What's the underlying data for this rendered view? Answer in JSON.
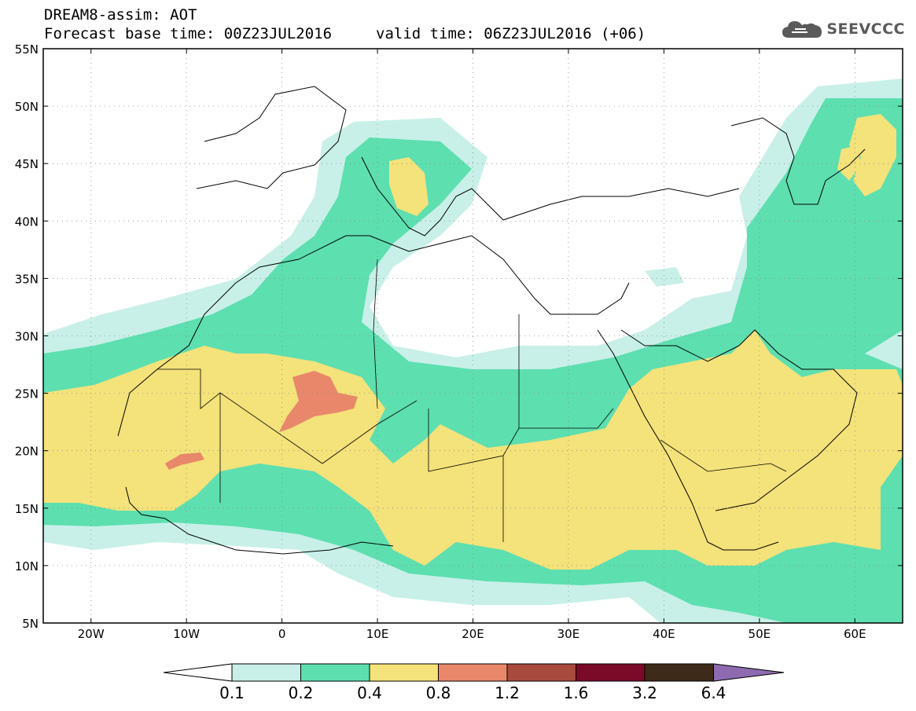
{
  "header": {
    "title": "DREAM8-assim: AOT",
    "base_time": "Forecast base time: 00Z23JUL2016",
    "valid_time": "valid time: 06Z23JUL2016 (+06)",
    "logo": "SEEVCCC"
  },
  "map": {
    "lat_labels": [
      "55N",
      "50N",
      "45N",
      "40N",
      "35N",
      "30N",
      "25N",
      "20N",
      "15N",
      "10N",
      "5N"
    ],
    "lon_labels": [
      "20W",
      "10W",
      "0",
      "10E",
      "20E",
      "30E",
      "40E",
      "50E",
      "60E"
    ],
    "lat_range": [
      5,
      55
    ],
    "lon_range": [
      -25,
      65
    ]
  },
  "legend": {
    "levels": [
      "0.1",
      "0.2",
      "0.4",
      "0.8",
      "1.2",
      "1.6",
      "3.2",
      "6.4"
    ],
    "colors": [
      "#c8f0e8",
      "#5ddfb0",
      "#f4e27a",
      "#e8876a",
      "#a84a3e",
      "#7a0a26",
      "#3e2a18",
      "#8e6bb0"
    ]
  }
}
